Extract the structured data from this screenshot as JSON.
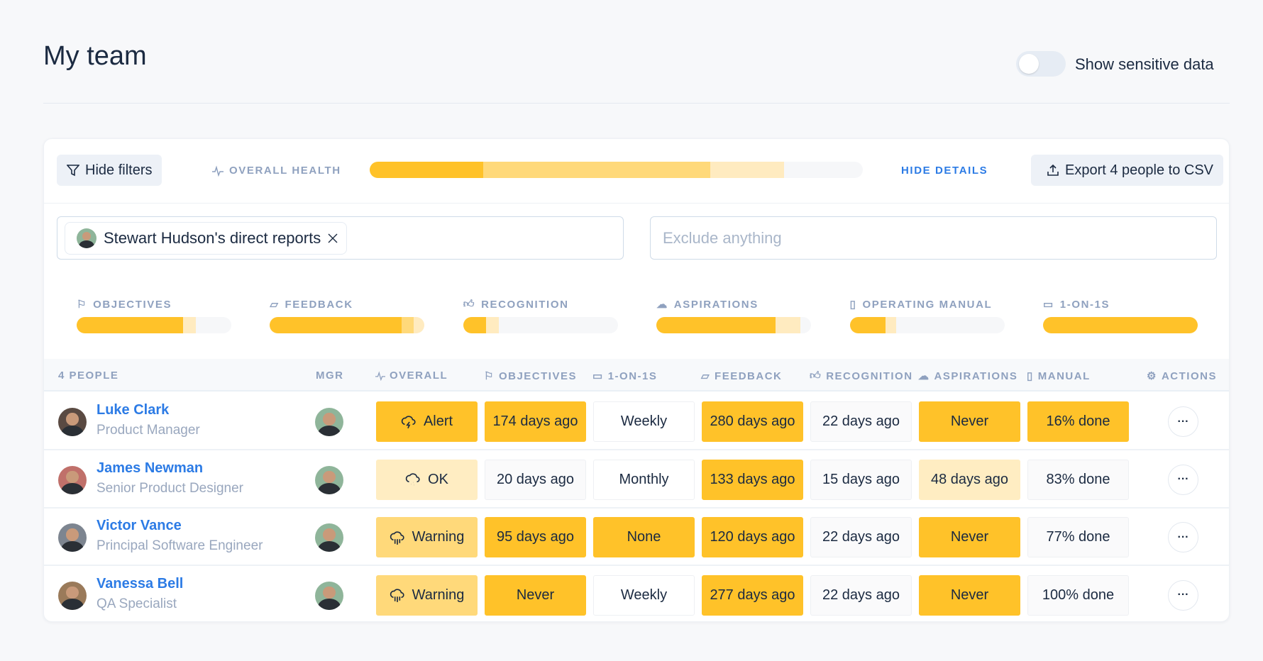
{
  "header": {
    "title": "My team",
    "toggle_label": "Show sensitive data",
    "toggle_on": false
  },
  "toolbar": {
    "hide_filters": "Hide filters",
    "overall_health": "OVERALL HEALTH",
    "health_segments": [
      0.23,
      0.46,
      0.15
    ],
    "hide_details": "HIDE DETAILS",
    "export": "Export 4 people to CSV"
  },
  "filters": {
    "chip": "Stewart Hudson's direct reports",
    "exclude_placeholder": "Exclude anything"
  },
  "categories": [
    {
      "label": "OBJECTIVES",
      "icon": "flag-icon",
      "segments": [
        0.69,
        0,
        0.08
      ]
    },
    {
      "label": "FEEDBACK",
      "icon": "comment-icon",
      "segments": [
        0.85,
        0.08,
        0.07
      ]
    },
    {
      "label": "RECOGNITION",
      "icon": "thumbs-up-icon",
      "segments": [
        0.15,
        0,
        0.08
      ]
    },
    {
      "label": "ASPIRATIONS",
      "icon": "balloon-icon",
      "segments": [
        0.77,
        0,
        0.16
      ]
    },
    {
      "label": "OPERATING MANUAL",
      "icon": "document-icon",
      "segments": [
        0.23,
        0,
        0.07
      ]
    },
    {
      "label": "1-ON-1S",
      "icon": "calendar-icon",
      "segments": [
        1,
        0,
        0
      ]
    }
  ],
  "table": {
    "headers": {
      "people": "4 PEOPLE",
      "mgr": "MGR",
      "overall": "OVERALL",
      "objectives": "OBJECTIVES",
      "oneonones": "1-ON-1S",
      "feedback": "FEEDBACK",
      "recognition": "RECOGNITION",
      "aspirations": "ASPIRATIONS",
      "manual": "MANUAL",
      "actions": "ACTIONS"
    },
    "rows": [
      {
        "name": "Luke Clark",
        "role": "Product Manager",
        "avatar": "#5A4A42",
        "cells": [
          {
            "text": "Alert",
            "s": "alert",
            "icon": "storm-icon"
          },
          {
            "text": "174 days ago",
            "s": "alert"
          },
          {
            "text": "Weekly",
            "s": "white"
          },
          {
            "text": "280 days ago",
            "s": "alert"
          },
          {
            "text": "22 days ago",
            "s": "neutral"
          },
          {
            "text": "Never",
            "s": "alert"
          },
          {
            "text": "16% done",
            "s": "alert"
          }
        ]
      },
      {
        "name": "James Newman",
        "role": "Senior Product Designer",
        "avatar": "#C0706A",
        "cells": [
          {
            "text": "OK",
            "s": "ok",
            "icon": "drizzle-icon"
          },
          {
            "text": "20 days ago",
            "s": "neutral"
          },
          {
            "text": "Monthly",
            "s": "white"
          },
          {
            "text": "133 days ago",
            "s": "alert"
          },
          {
            "text": "15 days ago",
            "s": "neutral"
          },
          {
            "text": "48 days ago",
            "s": "ok"
          },
          {
            "text": "83% done",
            "s": "neutral"
          }
        ]
      },
      {
        "name": "Victor Vance",
        "role": "Principal Software Engineer",
        "avatar": "#7D8590",
        "cells": [
          {
            "text": "Warning",
            "s": "warn",
            "icon": "rain-icon"
          },
          {
            "text": "95 days ago",
            "s": "alert"
          },
          {
            "text": "None",
            "s": "alert"
          },
          {
            "text": "120 days ago",
            "s": "alert"
          },
          {
            "text": "22 days ago",
            "s": "neutral"
          },
          {
            "text": "Never",
            "s": "alert"
          },
          {
            "text": "77% done",
            "s": "neutral"
          }
        ]
      },
      {
        "name": "Vanessa Bell",
        "role": "QA Specialist",
        "avatar": "#9A7A5A",
        "cells": [
          {
            "text": "Warning",
            "s": "warn",
            "icon": "rain-icon"
          },
          {
            "text": "Never",
            "s": "alert"
          },
          {
            "text": "Weekly",
            "s": "white"
          },
          {
            "text": "277 days ago",
            "s": "alert"
          },
          {
            "text": "22 days ago",
            "s": "neutral"
          },
          {
            "text": "Never",
            "s": "alert"
          },
          {
            "text": "100% done",
            "s": "neutral"
          }
        ]
      }
    ],
    "actions_label": "···"
  },
  "colors": {
    "dark": "#FFC229",
    "medium": "#FFD97A",
    "light": "#FFEBC0"
  }
}
